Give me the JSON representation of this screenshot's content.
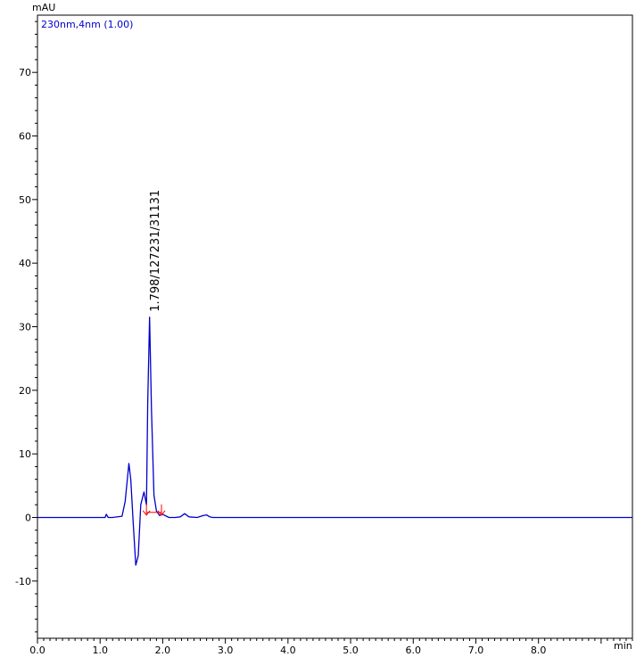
{
  "chart_data": {
    "type": "line",
    "ylabel": "mAU",
    "xlabel": "min",
    "xlim": [
      0.0,
      9.5
    ],
    "ylim": [
      -19.0,
      79.0
    ],
    "grid": false,
    "x_ticks": [
      0.0,
      1.0,
      2.0,
      3.0,
      4.0,
      5.0,
      6.0,
      7.0,
      8.0
    ],
    "x_tick_labels": [
      "0.0",
      "1.0",
      "2.0",
      "3.0",
      "4.0",
      "5.0",
      "6.0",
      "7.0",
      "8.0"
    ],
    "y_ticks": [
      -10,
      0,
      10,
      20,
      30,
      40,
      50,
      60,
      70
    ],
    "y_tick_labels": [
      "-10",
      "0",
      "10",
      "20",
      "30",
      "40",
      "50",
      "60",
      "70"
    ],
    "series": [
      {
        "name": "230nm,4nm (1.00)",
        "color": "#0000cc",
        "x": [
          0.0,
          1.0,
          1.08,
          1.1,
          1.13,
          1.2,
          1.35,
          1.4,
          1.46,
          1.49,
          1.53,
          1.57,
          1.61,
          1.65,
          1.7,
          1.74,
          1.76,
          1.79,
          1.82,
          1.86,
          1.9,
          1.95,
          2.0,
          2.1,
          2.2,
          2.28,
          2.35,
          2.42,
          2.55,
          2.65,
          2.7,
          2.75,
          2.8,
          3.0,
          5.0,
          9.5
        ],
        "y": [
          0.0,
          0.0,
          0.0,
          0.5,
          0.0,
          0.0,
          0.2,
          2.5,
          8.5,
          6.0,
          -1.0,
          -7.5,
          -6.0,
          2.0,
          4.0,
          2.0,
          18.0,
          31.5,
          17.0,
          3.5,
          1.0,
          0.3,
          0.5,
          0.0,
          0.0,
          0.1,
          0.6,
          0.1,
          0.0,
          0.3,
          0.4,
          0.1,
          0.0,
          0.0,
          0.0,
          0.0
        ]
      }
    ],
    "peak_annotations": [
      {
        "text": "1.798/127231/31131",
        "x": 1.798,
        "y": 31.5
      }
    ],
    "integration_markers": {
      "color": "#ff0000",
      "x": [
        1.74,
        1.98
      ],
      "y": [
        0.8,
        0.8
      ]
    }
  }
}
